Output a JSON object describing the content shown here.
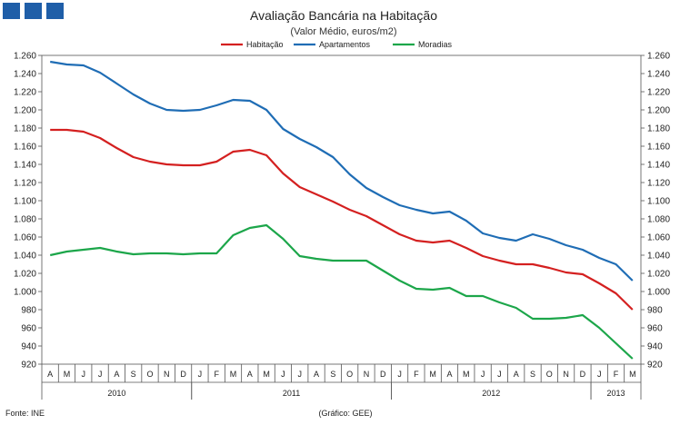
{
  "logo": {
    "name": "GEE logo squares",
    "count": 3,
    "color": "#1f5ea8"
  },
  "chart_data": {
    "type": "line",
    "title": "Avaliação Bancária na Habitação",
    "subtitle": "(Valor Médio, euros/m2)",
    "ylim": [
      920,
      1260
    ],
    "yticks": [
      "920",
      "940",
      "960",
      "980",
      "1.000",
      "1.020",
      "1.040",
      "1.060",
      "1.080",
      "1.100",
      "1.120",
      "1.140",
      "1.160",
      "1.180",
      "1.200",
      "1.220",
      "1.240",
      "1.260"
    ],
    "ytick_values": [
      920,
      940,
      960,
      980,
      1000,
      1020,
      1040,
      1060,
      1080,
      1100,
      1120,
      1140,
      1160,
      1180,
      1200,
      1220,
      1240,
      1260
    ],
    "months": [
      "A",
      "M",
      "J",
      "J",
      "A",
      "S",
      "O",
      "N",
      "D",
      "J",
      "F",
      "M",
      "A",
      "M",
      "J",
      "J",
      "A",
      "S",
      "O",
      "N",
      "D",
      "J",
      "F",
      "M",
      "A",
      "M",
      "J",
      "J",
      "A",
      "S",
      "O",
      "N",
      "D",
      "J",
      "F",
      "M"
    ],
    "years": [
      {
        "label": "2010",
        "start": 0,
        "end": 9
      },
      {
        "label": "2011",
        "start": 9,
        "end": 21
      },
      {
        "label": "2012",
        "start": 21,
        "end": 33
      },
      {
        "label": "2013",
        "start": 33,
        "end": 36
      }
    ],
    "legend_position": "top",
    "series": [
      {
        "name": "Habitação",
        "color": "#d42020",
        "values": [
          1178,
          1178,
          1176,
          1169,
          1158,
          1148,
          1143,
          1140,
          1139,
          1139,
          1143,
          1154,
          1156,
          1150,
          1130,
          1115,
          1107,
          1099,
          1090,
          1083,
          1073,
          1063,
          1056,
          1054,
          1056,
          1048,
          1039,
          1034,
          1030,
          1030,
          1026,
          1021,
          1019,
          1009,
          998,
          980
        ]
      },
      {
        "name": "Apartamentos",
        "color": "#1f6db5",
        "values": [
          1253,
          1250,
          1249,
          1241,
          1229,
          1217,
          1207,
          1200,
          1199,
          1200,
          1205,
          1211,
          1210,
          1200,
          1179,
          1168,
          1159,
          1148,
          1129,
          1114,
          1104,
          1095,
          1090,
          1086,
          1088,
          1078,
          1064,
          1059,
          1056,
          1063,
          1058,
          1051,
          1046,
          1037,
          1030,
          1012
        ]
      },
      {
        "name": "Moradias",
        "color": "#1ca64a",
        "values": [
          1040,
          1044,
          1046,
          1048,
          1044,
          1041,
          1042,
          1042,
          1041,
          1042,
          1042,
          1062,
          1070,
          1073,
          1058,
          1039,
          1036,
          1034,
          1034,
          1034,
          1023,
          1012,
          1003,
          1002,
          1004,
          995,
          995,
          988,
          982,
          970,
          970,
          971,
          974,
          960,
          943,
          926
        ]
      }
    ]
  },
  "footer": {
    "source": "Fonte: INE",
    "credit": "(Gráfico: GEE)"
  }
}
